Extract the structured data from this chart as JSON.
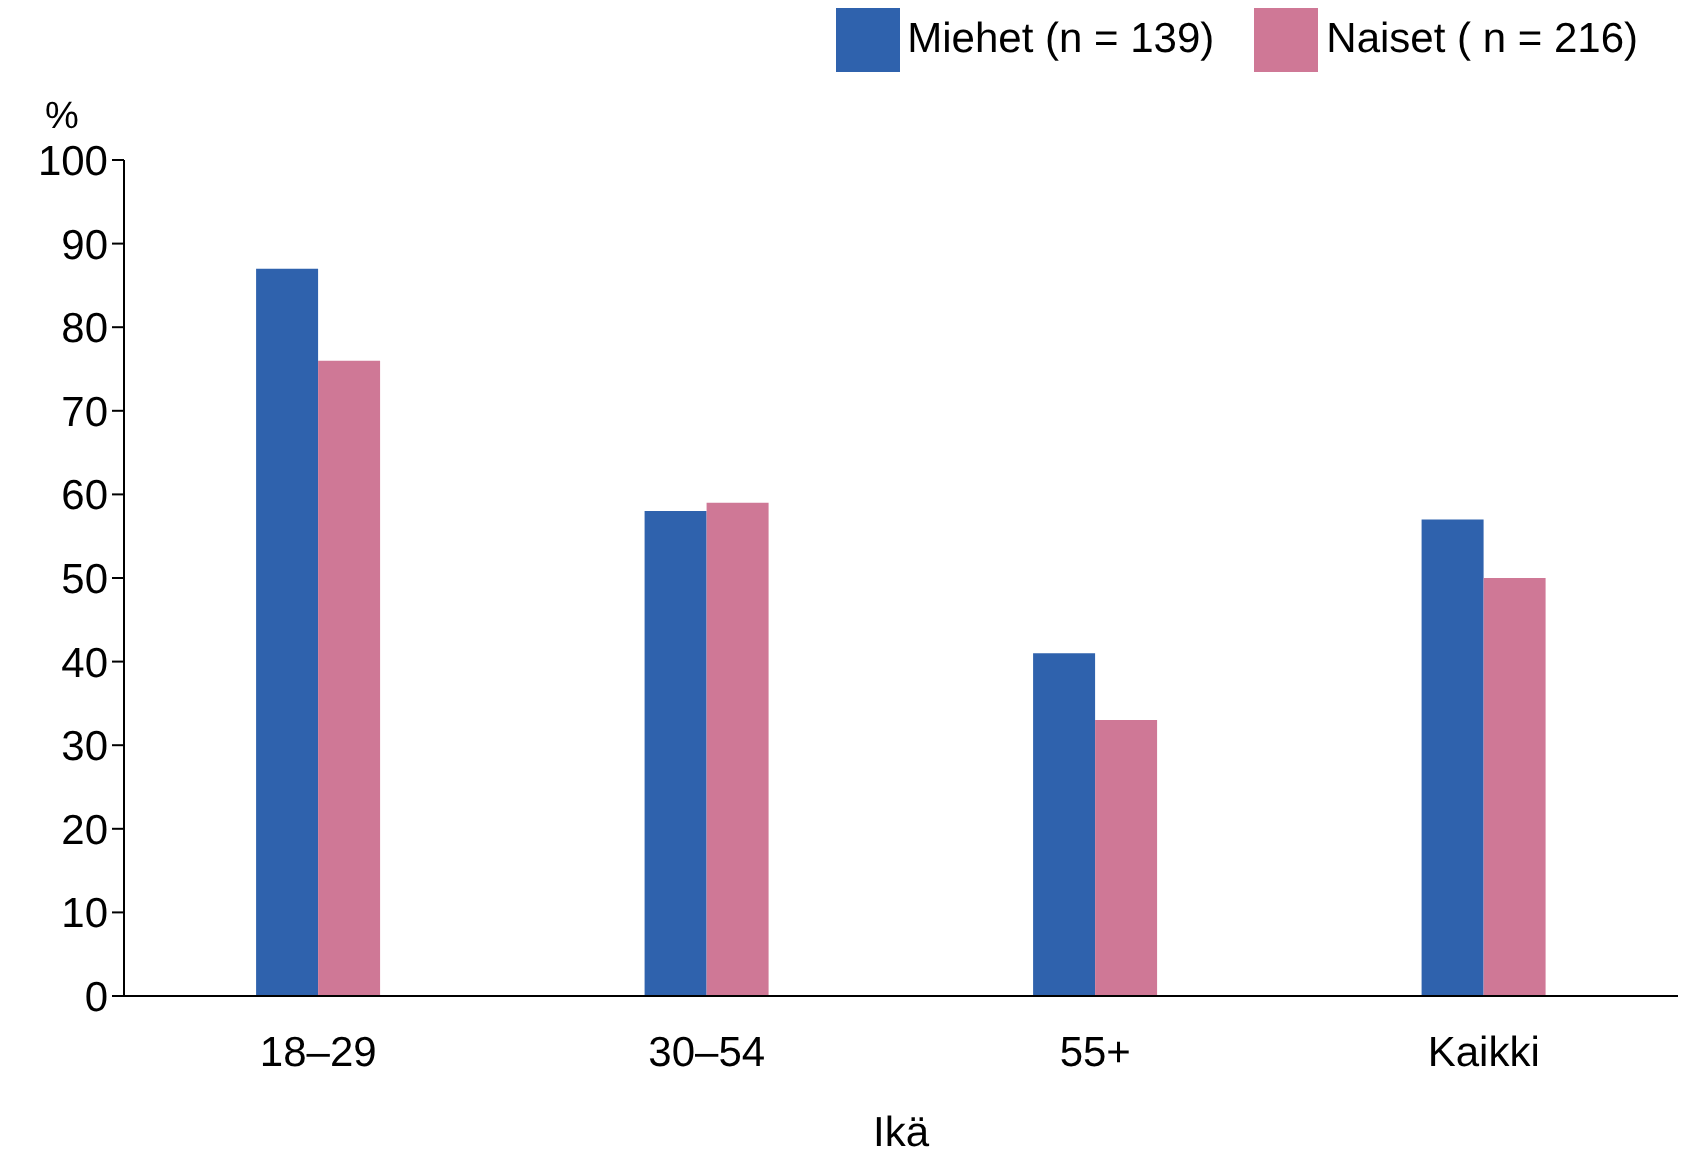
{
  "chart_data": {
    "type": "bar",
    "categories": [
      "18–29",
      "30–54",
      "55+",
      "Kaikki"
    ],
    "xlabel": "Ikä",
    "ylabel": "%",
    "series": [
      {
        "name": "Miehet (n = 139)",
        "color": "#2f62ad",
        "values": [
          87,
          58,
          41,
          57
        ]
      },
      {
        "name": "Naiset ( n = 216)",
        "color": "#cf7896",
        "values": [
          76,
          59,
          33,
          50
        ]
      }
    ],
    "ylim": [
      0,
      100
    ],
    "yticks": [
      0,
      10,
      20,
      30,
      40,
      50,
      60,
      70,
      80,
      90,
      100
    ],
    "grid": false,
    "legend": "top right"
  }
}
